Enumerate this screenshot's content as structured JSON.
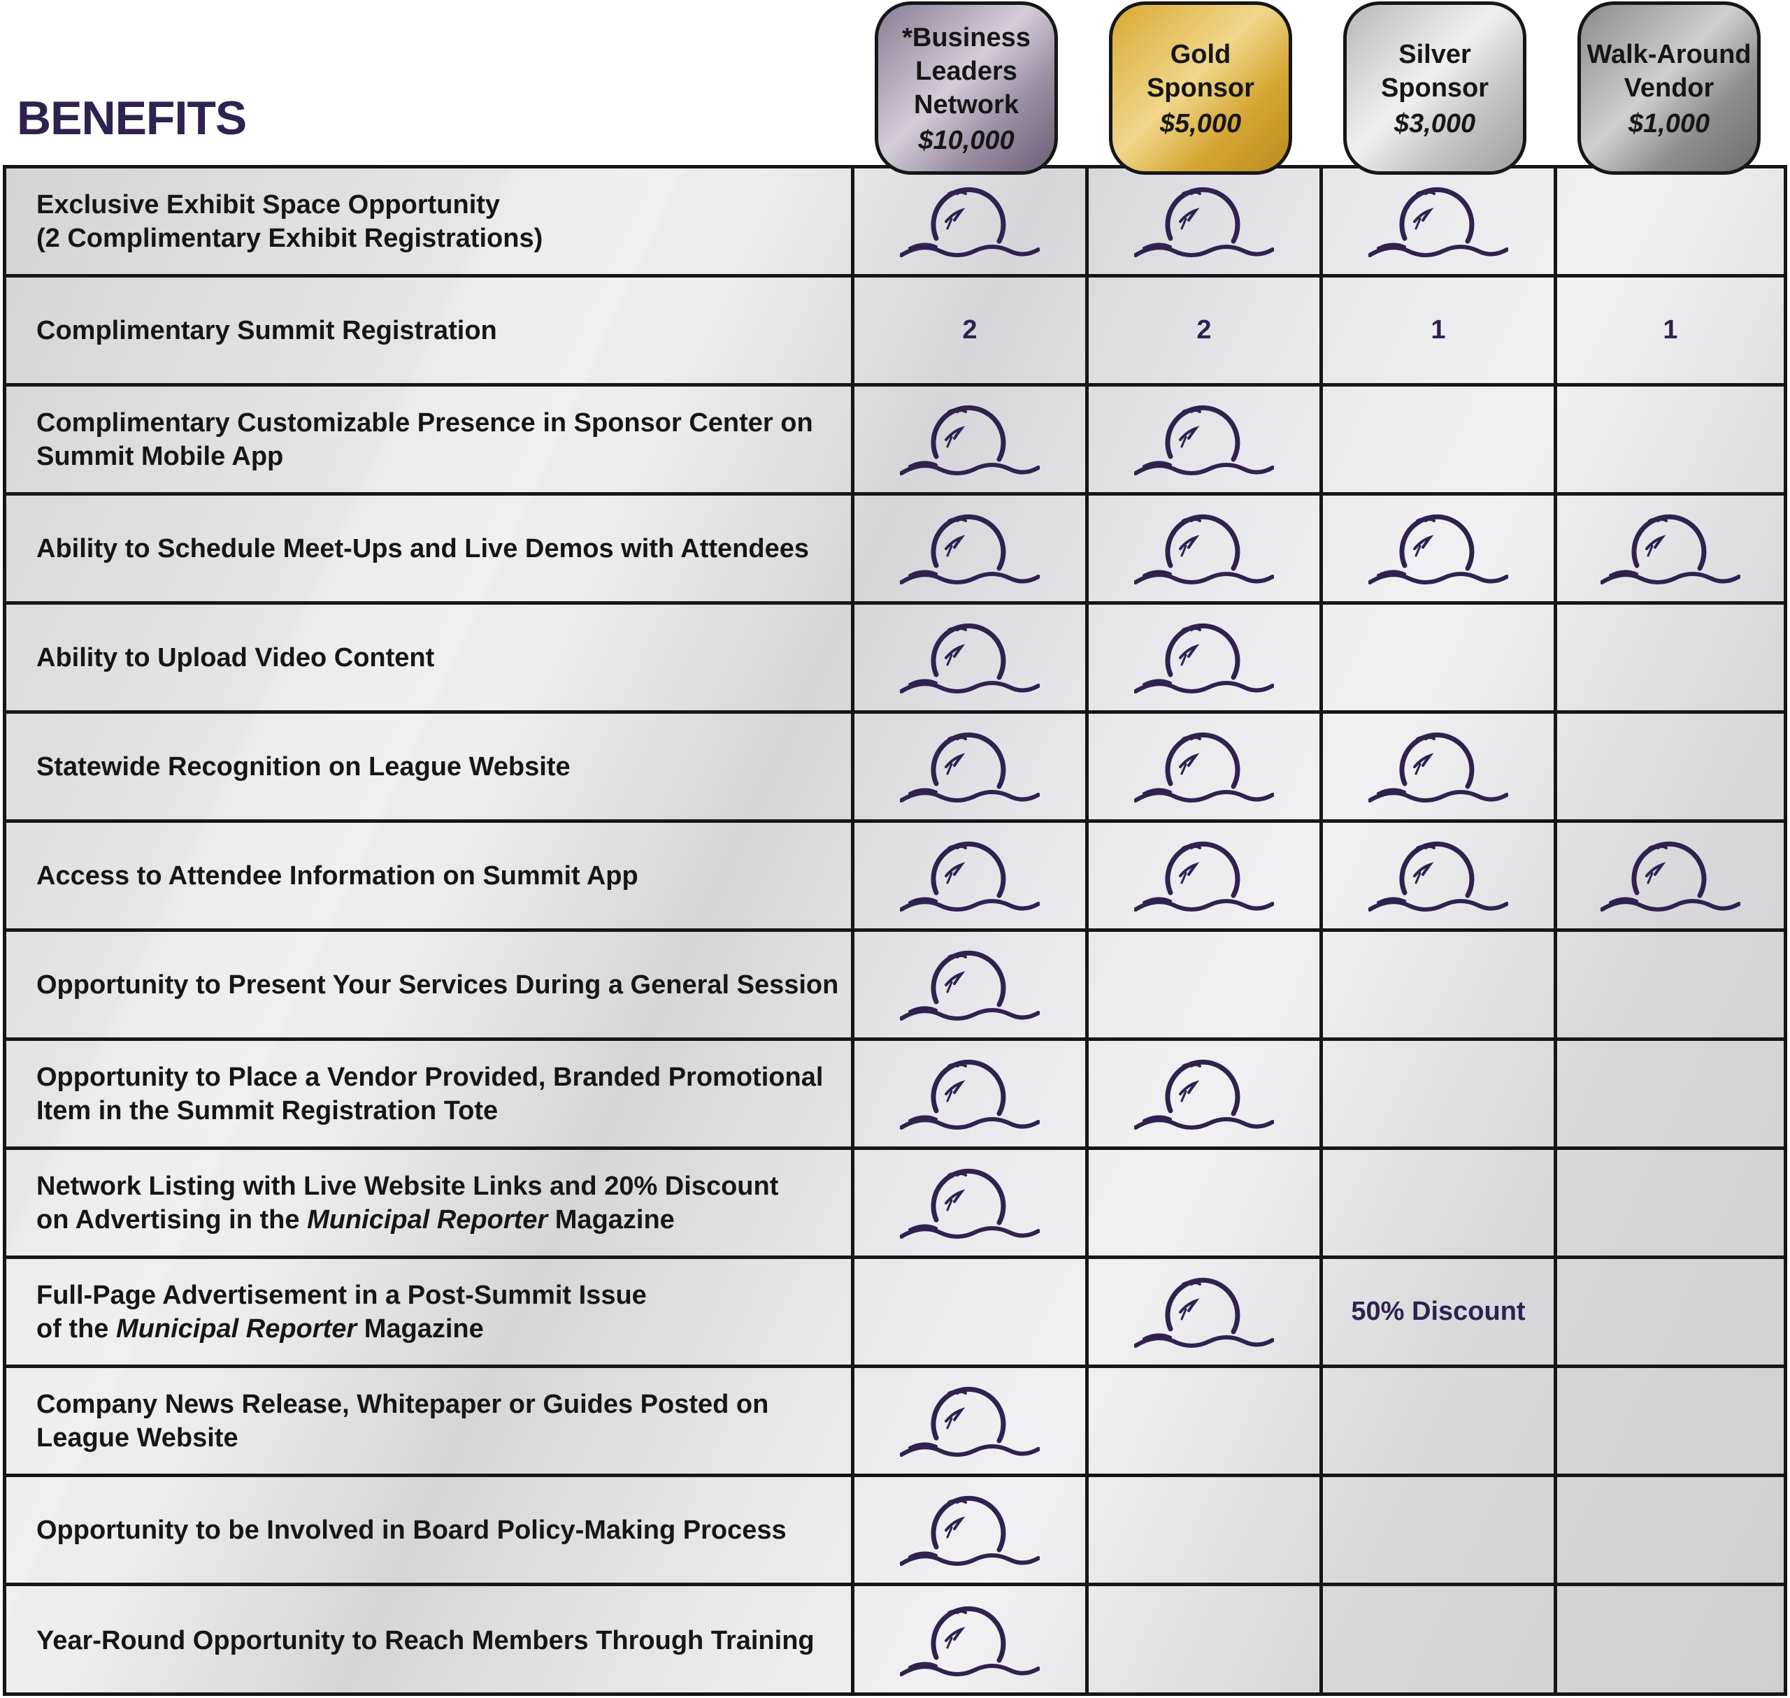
{
  "title": "BENEFITS",
  "tiers": [
    {
      "name": "*Business Leaders Network",
      "price": "$10,000",
      "color": "#9a8fa3"
    },
    {
      "name": "Gold Sponsor",
      "price": "$5,000",
      "color": "#d9a930"
    },
    {
      "name": "Silver Sponsor",
      "price": "$3,000",
      "color": "#c4c4c4"
    },
    {
      "name": "Walk-Around Vendor",
      "price": "$1,000",
      "color": "#8f8f8f"
    }
  ],
  "icon": "sun-wave-seagull-icon",
  "accent_color": "#30214f",
  "rows": [
    {
      "benefit": "Exclusive Exhibit Space Opportunity",
      "benefit_line2": "(2 Complimentary Exhibit Registrations)",
      "cells": [
        "icon",
        "icon",
        "icon",
        ""
      ]
    },
    {
      "benefit": "Complimentary Summit Registration",
      "cells": [
        "2",
        "2",
        "1",
        "1"
      ]
    },
    {
      "benefit": "Complimentary Customizable Presence in Sponsor Center on",
      "benefit_line2": "Summit Mobile App",
      "cells": [
        "icon",
        "icon",
        "",
        ""
      ]
    },
    {
      "benefit": "Ability to Schedule Meet-Ups and Live Demos with Attendees",
      "cells": [
        "icon",
        "icon",
        "icon",
        "icon"
      ]
    },
    {
      "benefit": "Ability to Upload Video Content",
      "cells": [
        "icon",
        "icon",
        "",
        ""
      ]
    },
    {
      "benefit": "Statewide Recognition on League Website",
      "cells": [
        "icon",
        "icon",
        "icon",
        ""
      ]
    },
    {
      "benefit": "Access to Attendee Information on Summit App",
      "cells": [
        "icon",
        "icon",
        "icon",
        "icon"
      ]
    },
    {
      "benefit": "Opportunity to Present Your Services During a General Session",
      "cells": [
        "icon",
        "",
        "",
        ""
      ]
    },
    {
      "benefit": "Opportunity to Place a Vendor Provided, Branded Promotional",
      "benefit_line2": "Item in the Summit Registration Tote",
      "cells": [
        "icon",
        "icon",
        "",
        ""
      ]
    },
    {
      "benefit": "Network Listing with Live Website Links and 20% Discount",
      "benefit_line2_parts": [
        "on Advertising in the ",
        "Municipal Reporter",
        " Magazine"
      ],
      "cells": [
        "icon",
        "",
        "",
        ""
      ]
    },
    {
      "benefit": "Full-Page Advertisement in a Post-Summit Issue",
      "benefit_line2_parts": [
        "of the ",
        "Municipal Reporter",
        " Magazine"
      ],
      "cells": [
        "",
        "icon",
        "50% Discount",
        ""
      ]
    },
    {
      "benefit": "Company News Release, Whitepaper or Guides Posted on",
      "benefit_line2": "League Website",
      "cells": [
        "icon",
        "",
        "",
        ""
      ]
    },
    {
      "benefit": "Opportunity to be Involved in Board Policy-Making Process",
      "cells": [
        "icon",
        "",
        "",
        ""
      ]
    },
    {
      "benefit": "Year-Round Opportunity to Reach Members Through Training",
      "cells": [
        "icon",
        "",
        "",
        ""
      ]
    }
  ]
}
